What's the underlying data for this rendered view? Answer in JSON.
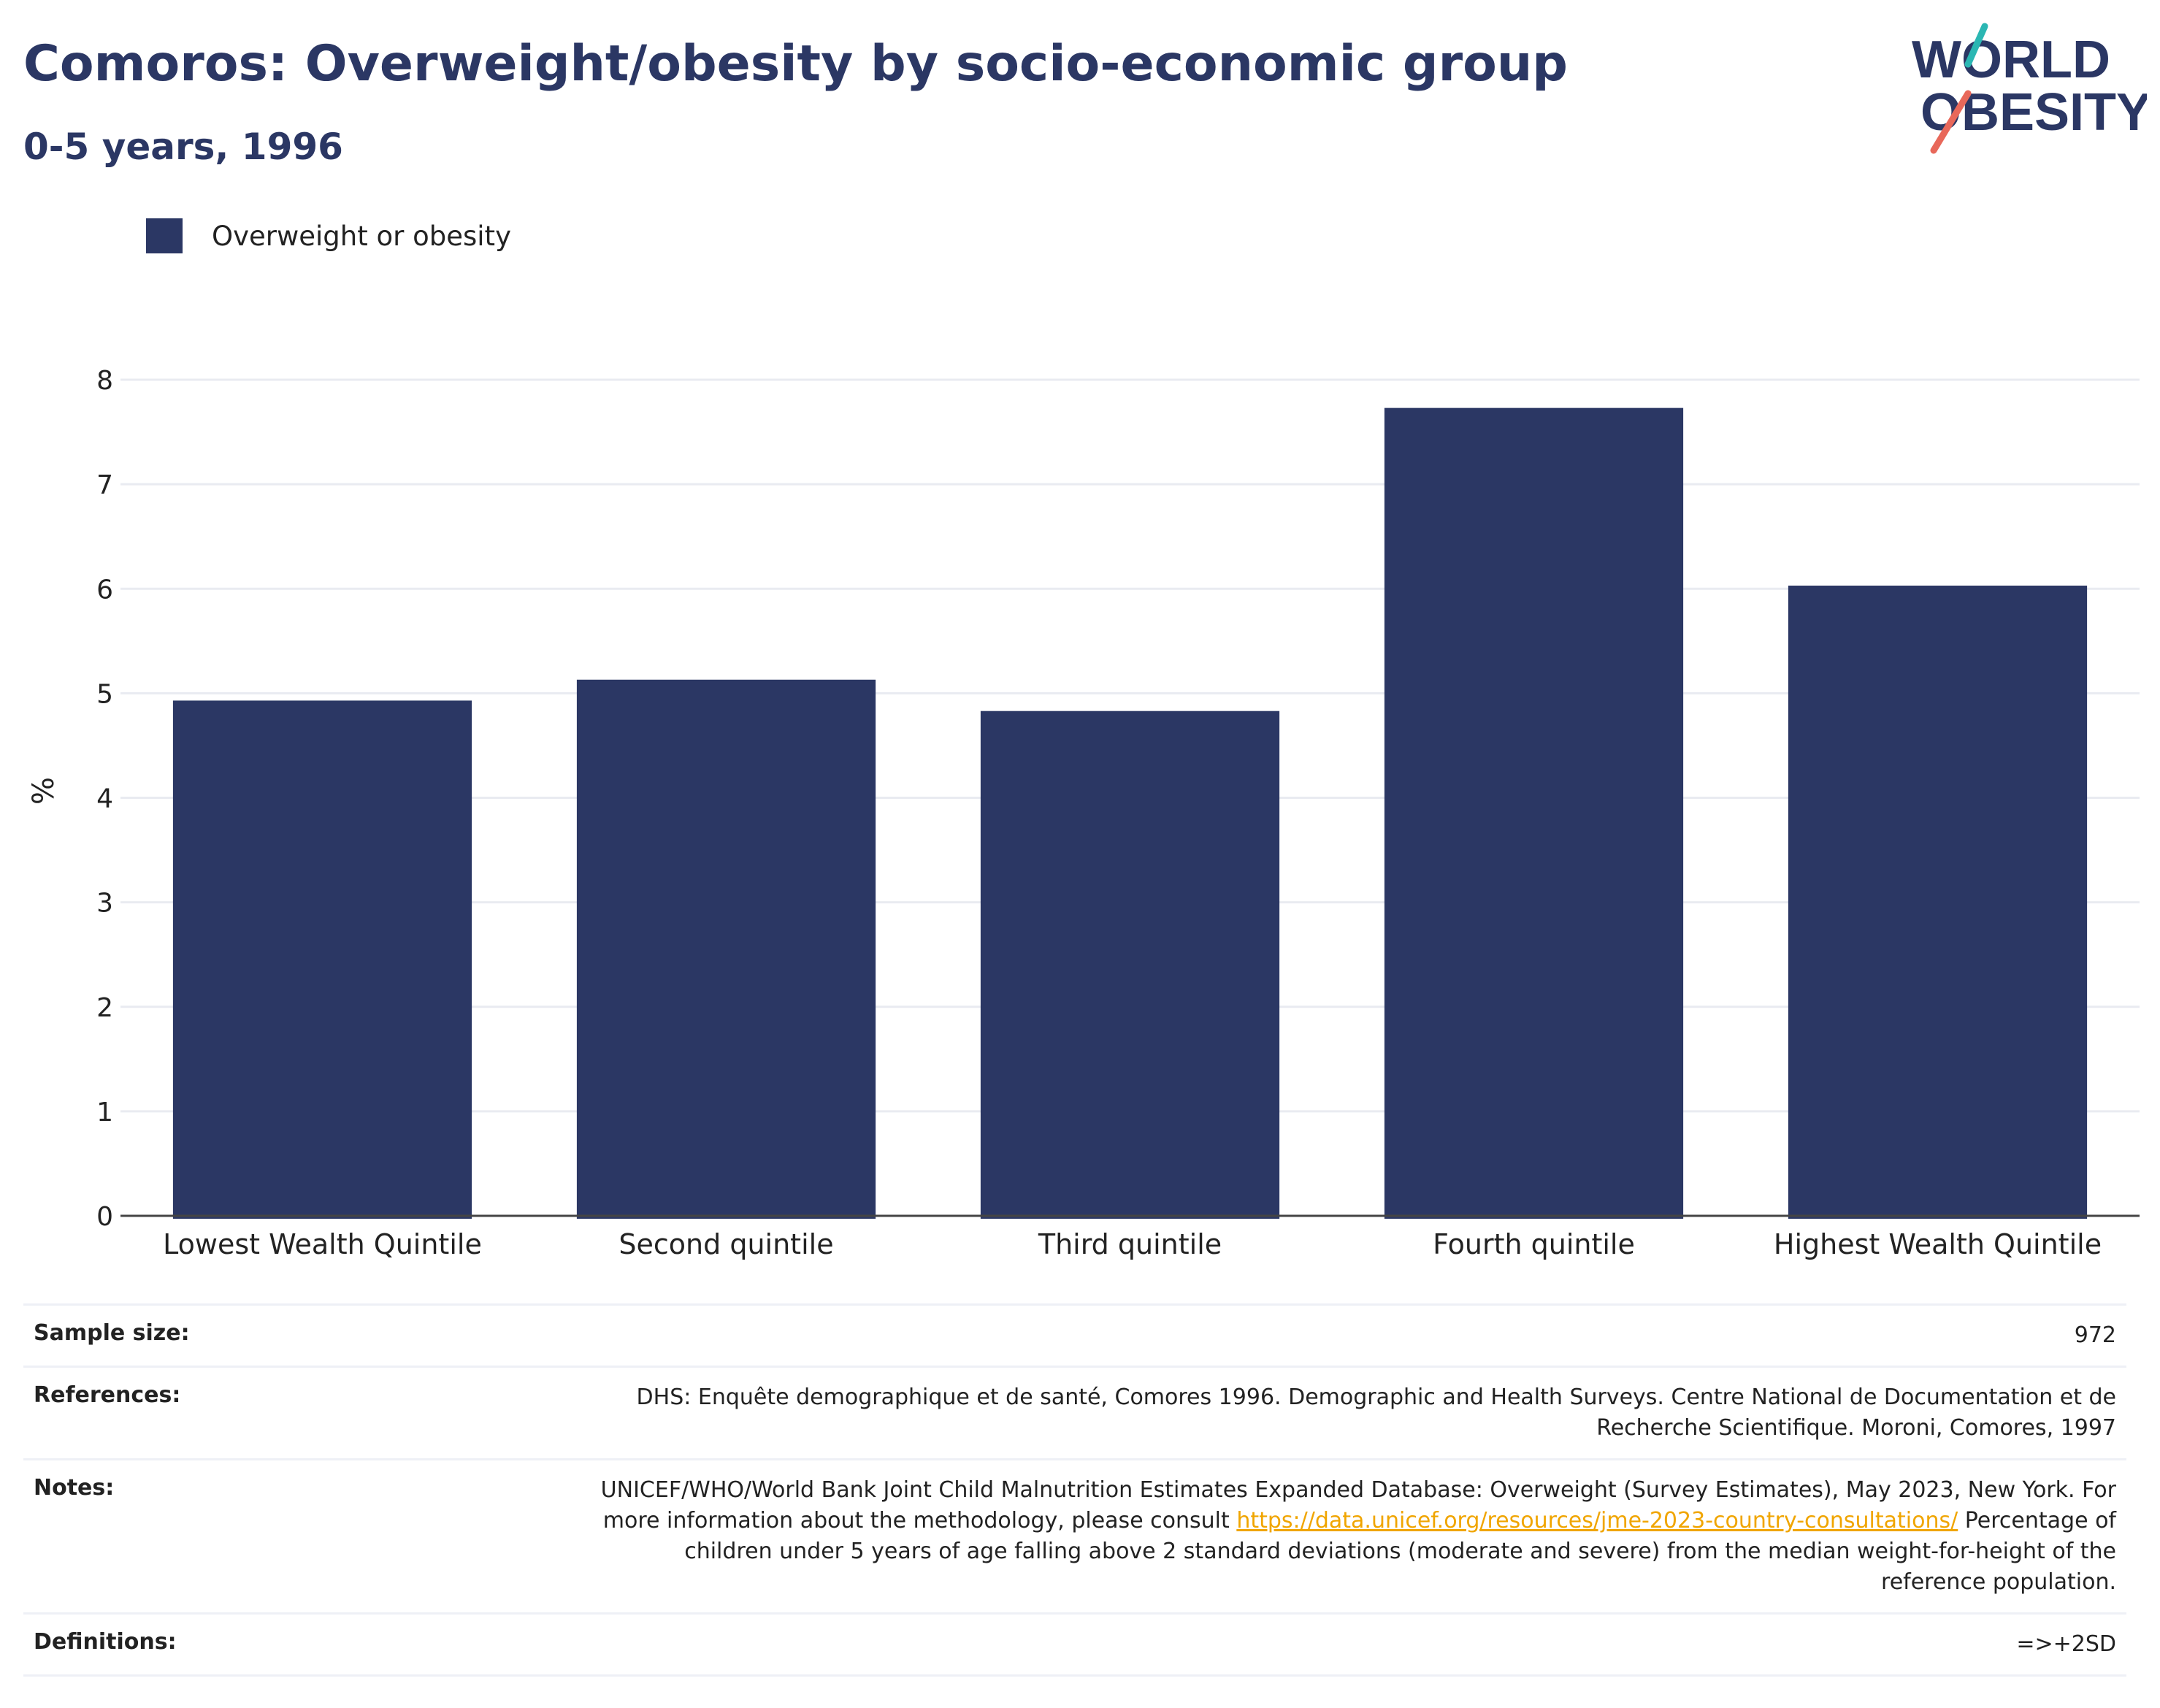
{
  "header": {
    "title": "Comoros: Overweight/obesity by socio-economic group",
    "subtitle": "0-5 years, 1996"
  },
  "logo": {
    "line1": "WORLD",
    "line2": "OBESITY",
    "colors": {
      "navy": "#2b3764",
      "teal": "#2bb7b3",
      "coral": "#e8685a"
    }
  },
  "legend": {
    "items": [
      {
        "label": "Overweight or obesity",
        "color": "#2b3764"
      }
    ]
  },
  "chart_data": {
    "type": "bar",
    "categories": [
      "Lowest Wealth Quintile",
      "Second quintile",
      "Third quintile",
      "Fourth quintile",
      "Highest Wealth Quintile"
    ],
    "series": [
      {
        "name": "Overweight or obesity",
        "values": [
          4.93,
          5.13,
          4.83,
          7.73,
          6.03
        ],
        "color": "#2b3764"
      }
    ],
    "ylabel": "%",
    "ylim": [
      0,
      8
    ],
    "yticks": [
      0,
      1,
      2,
      3,
      4,
      5,
      6,
      7,
      8
    ],
    "grid": true,
    "legend_position": "top-left"
  },
  "info": {
    "sample_size": {
      "label": "Sample size:",
      "value": "972"
    },
    "references": {
      "label": "References:",
      "value": "DHS: Enquête demographique et de santé, Comores 1996. Demographic and Health Surveys. Centre National de Documentation et de Recherche Scientifique. Moroni, Comores, 1997"
    },
    "notes": {
      "label": "Notes:",
      "text_before": "UNICEF/WHO/World Bank Joint Child Malnutrition Estimates Expanded Database: Overweight (Survey Estimates), May 2023, New York. For more information about the methodology, please consult ",
      "link": "https://data.unicef.org/resources/jme-2023-country-consultations/",
      "text_after": " Percentage of children under 5 years of age falling above 2 standard deviations (moderate and severe) from the median weight-for-height of the reference population."
    },
    "definitions": {
      "label": "Definitions:",
      "value": "=>+2SD"
    }
  }
}
